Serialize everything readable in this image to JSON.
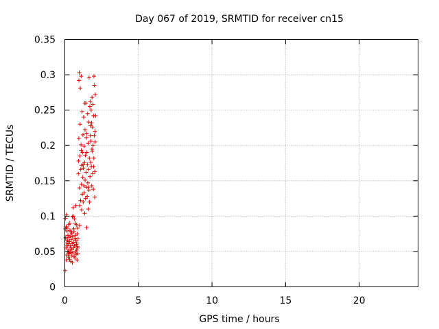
{
  "chart_data": {
    "type": "scatter",
    "title": "Day 067 of 2019, SRMTID for receiver cn15",
    "xlabel": "GPS time / hours",
    "ylabel": "SRMTID / TECUs",
    "xlim": [
      0,
      24
    ],
    "ylim": [
      0,
      0.35
    ],
    "xticks": [
      0,
      5,
      10,
      15,
      20
    ],
    "xtick_labels": [
      "0",
      "5",
      "10",
      "15",
      "20"
    ],
    "yticks": [
      0,
      0.05,
      0.1,
      0.15,
      0.2,
      0.25,
      0.3,
      0.35
    ],
    "ytick_labels": [
      "0",
      "0.05",
      "0.1",
      "0.15",
      "0.2",
      "0.25",
      "0.3",
      "0.35"
    ],
    "grid": true,
    "marker": "+",
    "color": "#e00000",
    "series": [
      {
        "name": "cn15",
        "points": [
          [
            0.02,
            0.023
          ],
          [
            0.03,
            0.082
          ],
          [
            0.05,
            0.097
          ],
          [
            0.06,
            0.068
          ],
          [
            0.08,
            0.055
          ],
          [
            0.09,
            0.085
          ],
          [
            0.1,
            0.038
          ],
          [
            0.11,
            0.102
          ],
          [
            0.12,
            0.062
          ],
          [
            0.14,
            0.045
          ],
          [
            0.15,
            0.079
          ],
          [
            0.17,
            0.058
          ],
          [
            0.18,
            0.066
          ],
          [
            0.2,
            0.05
          ],
          [
            0.21,
            0.073
          ],
          [
            0.23,
            0.042
          ],
          [
            0.24,
            0.061
          ],
          [
            0.26,
            0.088
          ],
          [
            0.27,
            0.052
          ],
          [
            0.29,
            0.07
          ],
          [
            0.3,
            0.047
          ],
          [
            0.32,
            0.064
          ],
          [
            0.33,
            0.039
          ],
          [
            0.35,
            0.08
          ],
          [
            0.36,
            0.058
          ],
          [
            0.38,
            0.049
          ],
          [
            0.39,
            0.072
          ],
          [
            0.41,
            0.036
          ],
          [
            0.42,
            0.055
          ],
          [
            0.44,
            0.067
          ],
          [
            0.45,
            0.044
          ],
          [
            0.47,
            0.076
          ],
          [
            0.48,
            0.053
          ],
          [
            0.5,
            0.061
          ],
          [
            0.51,
            0.034
          ],
          [
            0.53,
            0.071
          ],
          [
            0.54,
            0.048
          ],
          [
            0.56,
            0.1
          ],
          [
            0.57,
            0.112
          ],
          [
            0.59,
            0.063
          ],
          [
            0.6,
            0.055
          ],
          [
            0.62,
            0.078
          ],
          [
            0.63,
            0.043
          ],
          [
            0.65,
            0.058
          ],
          [
            0.66,
            0.096
          ],
          [
            0.68,
            0.069
          ],
          [
            0.69,
            0.041
          ],
          [
            0.71,
            0.073
          ],
          [
            0.72,
            0.05
          ],
          [
            0.74,
            0.066
          ],
          [
            0.75,
            0.115
          ],
          [
            0.77,
            0.046
          ],
          [
            0.78,
            0.088
          ],
          [
            0.8,
            0.052
          ],
          [
            0.81,
            0.062
          ],
          [
            0.83,
            0.038
          ],
          [
            0.84,
            0.075
          ],
          [
            0.86,
            0.057
          ],
          [
            0.87,
            0.083
          ],
          [
            0.89,
            0.047
          ],
          [
            0.9,
            0.068
          ],
          [
            0.92,
            0.16
          ],
          [
            0.93,
            0.178
          ],
          [
            0.95,
            0.21
          ],
          [
            0.96,
            0.292
          ],
          [
            0.98,
            0.303
          ],
          [
            0.99,
            0.14
          ],
          [
            1.01,
            0.115
          ],
          [
            1.02,
            0.185
          ],
          [
            1.04,
            0.23
          ],
          [
            1.05,
            0.281
          ],
          [
            1.07,
            0.122
          ],
          [
            1.08,
            0.166
          ],
          [
            1.1,
            0.201
          ],
          [
            1.11,
            0.298
          ],
          [
            1.13,
            0.145
          ],
          [
            1.14,
            0.109
          ],
          [
            1.16,
            0.172
          ],
          [
            1.17,
            0.248
          ],
          [
            1.19,
            0.131
          ],
          [
            1.2,
            0.19
          ],
          [
            1.22,
            0.155
          ],
          [
            1.23,
            0.215
          ],
          [
            1.25,
            0.12
          ],
          [
            1.26,
            0.168
          ],
          [
            1.28,
            0.24
          ],
          [
            1.29,
            0.143
          ],
          [
            1.31,
            0.199
          ],
          [
            1.32,
            0.133
          ],
          [
            1.34,
            0.176
          ],
          [
            1.35,
            0.104
          ],
          [
            1.37,
            0.222
          ],
          [
            1.38,
            0.151
          ],
          [
            1.4,
            0.186
          ],
          [
            1.41,
            0.125
          ],
          [
            1.43,
            0.26
          ],
          [
            1.44,
            0.162
          ],
          [
            1.46,
            0.211
          ],
          [
            1.47,
            0.141
          ],
          [
            1.49,
            0.084
          ],
          [
            1.5,
            0.19
          ],
          [
            1.52,
            0.128
          ],
          [
            1.53,
            0.173
          ],
          [
            1.55,
            0.245
          ],
          [
            1.56,
            0.147
          ],
          [
            1.58,
            0.203
          ],
          [
            1.59,
            0.11
          ],
          [
            1.61,
            0.166
          ],
          [
            1.62,
            0.233
          ],
          [
            1.64,
            0.137
          ],
          [
            1.65,
            0.296
          ],
          [
            1.67,
            0.182
          ],
          [
            1.68,
            0.12
          ],
          [
            1.7,
            0.255
          ],
          [
            1.71,
            0.156
          ],
          [
            1.73,
            0.214
          ],
          [
            1.74,
            0.228
          ],
          [
            1.76,
            0.176
          ],
          [
            1.77,
            0.206
          ],
          [
            1.79,
            0.25
          ],
          [
            1.8,
            0.17
          ],
          [
            1.82,
            0.232
          ],
          [
            1.83,
            0.143
          ],
          [
            1.85,
            0.268
          ],
          [
            1.86,
            0.192
          ],
          [
            1.88,
            0.226
          ],
          [
            1.89,
            0.16
          ],
          [
            1.91,
            0.258
          ],
          [
            1.92,
            0.2
          ],
          [
            1.94,
            0.138
          ],
          [
            1.95,
            0.242
          ],
          [
            1.97,
            0.182
          ],
          [
            1.98,
            0.298
          ],
          [
            2.0,
            0.214
          ],
          [
            2.01,
            0.285
          ],
          [
            2.03,
            0.127
          ],
          [
            2.04,
            0.163
          ],
          [
            2.06,
            0.205
          ],
          [
            2.07,
            0.272
          ],
          [
            2.09,
            0.242
          ],
          [
            0.06,
            0.07
          ],
          [
            0.16,
            0.083
          ],
          [
            0.25,
            0.048
          ],
          [
            0.34,
            0.09
          ],
          [
            0.43,
            0.078
          ],
          [
            0.52,
            0.099
          ],
          [
            0.61,
            0.082
          ],
          [
            0.7,
            0.09
          ],
          [
            0.79,
            0.06
          ],
          [
            0.88,
            0.055
          ],
          [
            1.0,
            0.087
          ],
          [
            1.12,
            0.193
          ],
          [
            1.24,
            0.173
          ],
          [
            1.36,
            0.26
          ],
          [
            1.48,
            0.217
          ],
          [
            1.6,
            0.141
          ],
          [
            1.72,
            0.262
          ],
          [
            1.84,
            0.195
          ],
          [
            1.96,
            0.17
          ],
          [
            2.05,
            0.22
          ]
        ]
      }
    ]
  }
}
